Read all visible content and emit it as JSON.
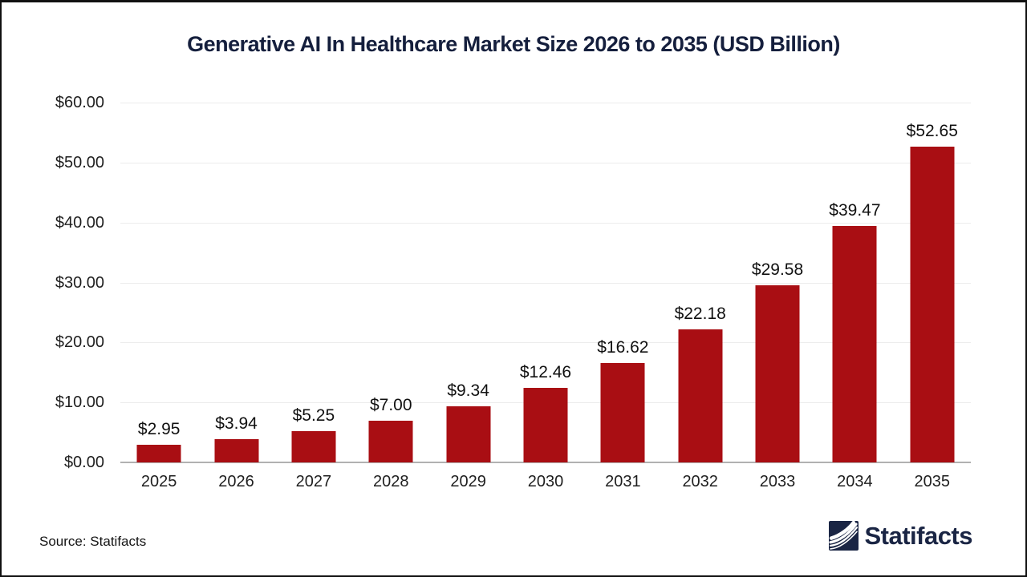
{
  "chart_data": {
    "type": "bar",
    "title": "Generative AI In Healthcare Market Size 2026 to 2035 (USD Billion)",
    "categories": [
      "2025",
      "2026",
      "2027",
      "2028",
      "2029",
      "2030",
      "2031",
      "2032",
      "2033",
      "2034",
      "2035"
    ],
    "values": [
      2.95,
      3.94,
      5.25,
      7.0,
      9.34,
      12.46,
      16.62,
      22.18,
      29.58,
      39.47,
      52.65
    ],
    "value_labels": [
      "$2.95",
      "$3.94",
      "$5.25",
      "$7.00",
      "$9.34",
      "$12.46",
      "$16.62",
      "$22.18",
      "$29.58",
      "$39.47",
      "$52.65"
    ],
    "y_ticks": [
      "$60.00",
      "$50.00",
      "$40.00",
      "$30.00",
      "$20.00",
      "$10.00",
      "$0.00"
    ],
    "ylim": [
      0,
      60
    ],
    "xlabel": "",
    "ylabel": "",
    "grid": true,
    "legend": "none",
    "bar_color": "#a90e13"
  },
  "colors": {
    "bar": "#a90e13",
    "title": "#151f3d",
    "brand": "#1a2544",
    "gridline": "#ececec",
    "baseline": "#b1b1b1",
    "axis_text": "#1f1f1f"
  },
  "footer": {
    "source_label": "Source: Statifacts",
    "brand_name": "Statifacts"
  }
}
